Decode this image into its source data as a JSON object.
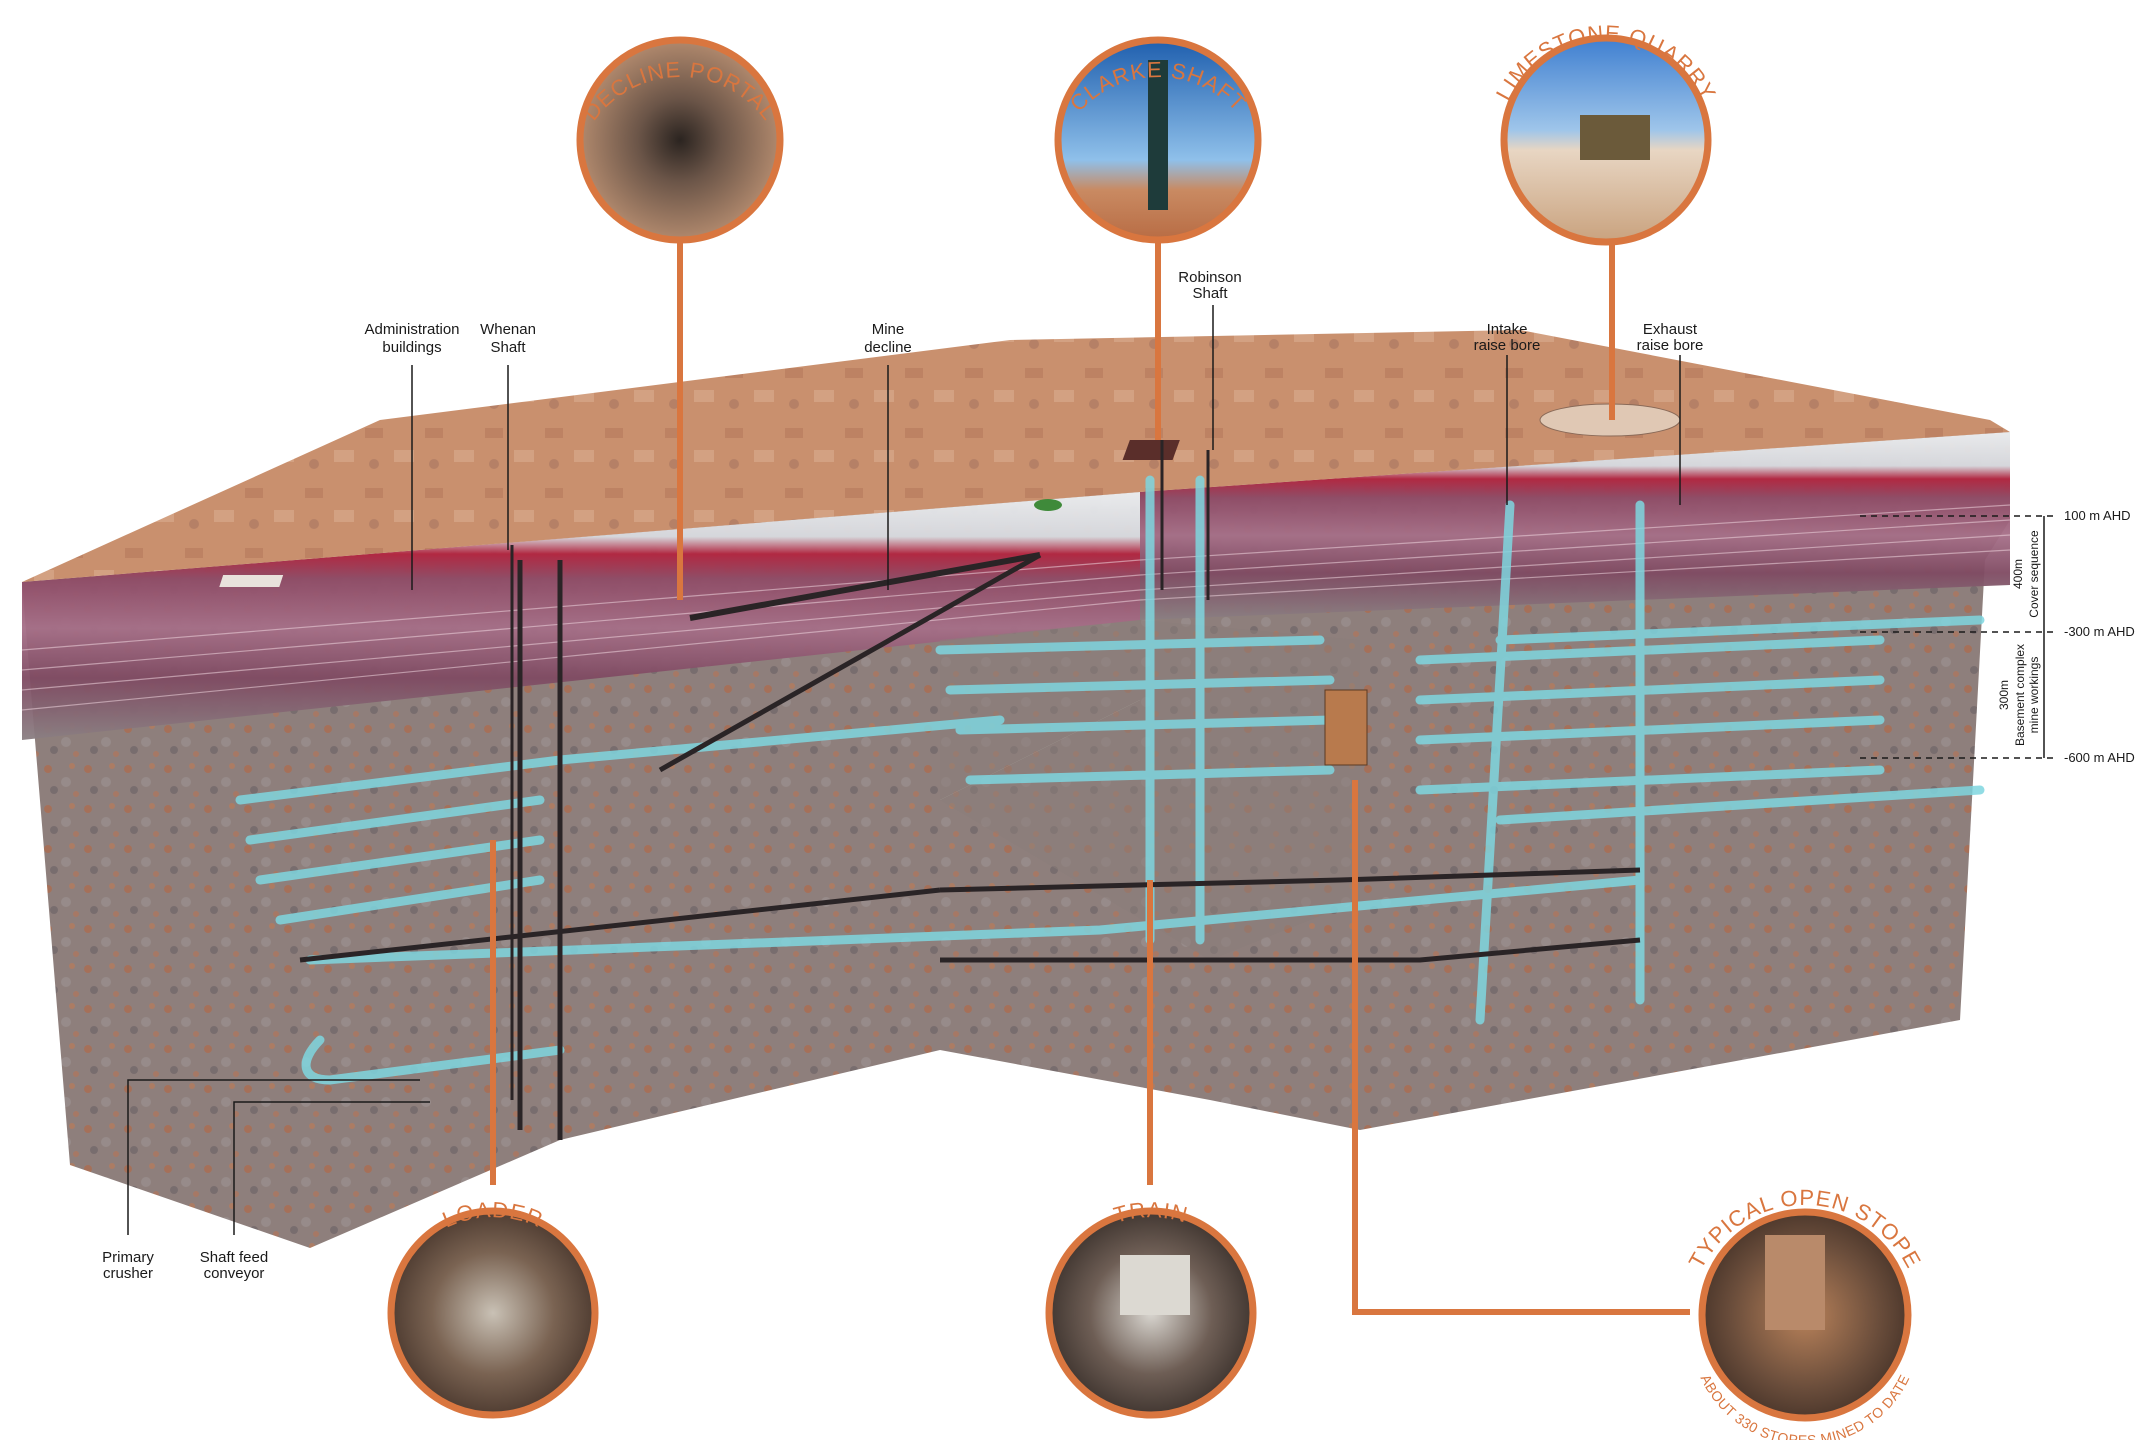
{
  "colors": {
    "accent": "#d9763f",
    "tunnel": "#7fd6df",
    "surface": "#c98c6a",
    "strata_red": "#8e4a5e",
    "rock": "#8c7c78"
  },
  "callouts": {
    "decline_portal": "DECLINE PORTAL",
    "clarke_shaft": "CLARKE SHAFT",
    "limestone_quarry": "LIMESTONE QUARRY",
    "loader": "LOADER",
    "train": "TRAIN",
    "typical_open_stope": "TYPICAL OPEN STOPE",
    "stopes_note": "ABOUT 330 STOPES MINED TO DATE"
  },
  "labels": {
    "admin_line1": "Administration",
    "admin_line2": "buildings",
    "whenan_line1": "Whenan",
    "whenan_line2": "Shaft",
    "decline_line1": "Mine",
    "decline_line2": "decline",
    "robinson_line1": "Robinson",
    "robinson_line2": "Shaft",
    "intake_line1": "Intake",
    "intake_line2": "raise bore",
    "exhaust_line1": "Exhaust",
    "exhaust_line2": "raise bore",
    "crusher_line1": "Primary",
    "crusher_line2": "crusher",
    "conveyor_line1": "Shaft feed",
    "conveyor_line2": "conveyor"
  },
  "levels": {
    "l100": "100 m AHD",
    "l300": "-300 m AHD",
    "l600": "-600 m AHD",
    "depth_upper": "400m",
    "depth_upper_desc": "Cover sequence",
    "depth_lower": "300m",
    "depth_lower_desc1": "Basement complex",
    "depth_lower_desc2": "mine workings"
  }
}
